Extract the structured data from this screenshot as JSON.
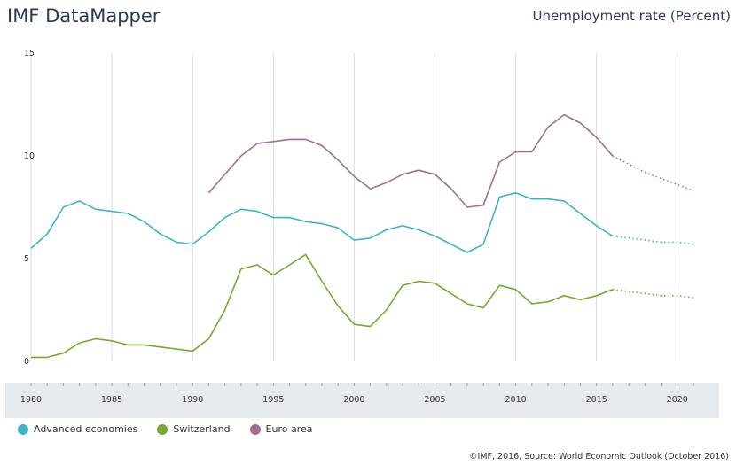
{
  "header": {
    "brand": "IMF DataMapper",
    "indicator": "Unemployment rate (Percent)"
  },
  "footer": {
    "credit": "©IMF, 2016, Source: World Economic Outlook (October 2016)"
  },
  "colors": {
    "advanced": "#3cb4c8",
    "switzerland": "#72aa32",
    "euro": "#a0708c",
    "grid": "#dddddd",
    "timeline_band": "#e6e9ed"
  },
  "chart_data": {
    "type": "line",
    "title": "Unemployment rate (Percent)",
    "xlim": [
      1980,
      2021
    ],
    "ylim": [
      0,
      15
    ],
    "y_ticks": [
      0,
      5,
      10,
      15
    ],
    "x_ticks": [
      1980,
      1985,
      1990,
      1995,
      2000,
      2005,
      2010,
      2015,
      2020
    ],
    "grid": "vertical",
    "legend_position": "bottom-left",
    "forecast_start": 2016,
    "series": [
      {
        "name": "Advanced economies",
        "color_key": "advanced",
        "x": [
          1980,
          1981,
          1982,
          1983,
          1984,
          1985,
          1986,
          1987,
          1988,
          1989,
          1990,
          1991,
          1992,
          1993,
          1994,
          1995,
          1996,
          1997,
          1998,
          1999,
          2000,
          2001,
          2002,
          2003,
          2004,
          2005,
          2006,
          2007,
          2008,
          2009,
          2010,
          2011,
          2012,
          2013,
          2014,
          2015,
          2016,
          2017,
          2018,
          2019,
          2020,
          2021
        ],
        "values": [
          5.5,
          6.2,
          7.5,
          7.8,
          7.4,
          7.3,
          7.2,
          6.8,
          6.2,
          5.8,
          5.7,
          6.3,
          7.0,
          7.4,
          7.3,
          7.0,
          7.0,
          6.8,
          6.7,
          6.5,
          5.9,
          6.0,
          6.4,
          6.6,
          6.4,
          6.1,
          5.7,
          5.3,
          5.7,
          8.0,
          8.2,
          7.9,
          7.9,
          7.8,
          7.2,
          6.6,
          6.1,
          6.0,
          5.9,
          5.8,
          5.8,
          5.7
        ]
      },
      {
        "name": "Switzerland",
        "color_key": "switzerland",
        "x": [
          1980,
          1981,
          1982,
          1983,
          1984,
          1985,
          1986,
          1987,
          1988,
          1989,
          1990,
          1991,
          1992,
          1993,
          1994,
          1995,
          1996,
          1997,
          1998,
          1999,
          2000,
          2001,
          2002,
          2003,
          2004,
          2005,
          2006,
          2007,
          2008,
          2009,
          2010,
          2011,
          2012,
          2013,
          2014,
          2015,
          2016,
          2017,
          2018,
          2019,
          2020,
          2021
        ],
        "values": [
          0.2,
          0.2,
          0.4,
          0.9,
          1.1,
          1.0,
          0.8,
          0.8,
          0.7,
          0.6,
          0.5,
          1.1,
          2.5,
          4.5,
          4.7,
          4.2,
          4.7,
          5.2,
          3.9,
          2.7,
          1.8,
          1.7,
          2.5,
          3.7,
          3.9,
          3.8,
          3.3,
          2.8,
          2.6,
          3.7,
          3.5,
          2.8,
          2.9,
          3.2,
          3.0,
          3.2,
          3.5,
          3.4,
          3.3,
          3.2,
          3.2,
          3.1
        ]
      },
      {
        "name": "Euro area",
        "color_key": "euro",
        "x": [
          1991,
          1992,
          1993,
          1994,
          1995,
          1996,
          1997,
          1998,
          1999,
          2000,
          2001,
          2002,
          2003,
          2004,
          2005,
          2006,
          2007,
          2008,
          2009,
          2010,
          2011,
          2012,
          2013,
          2014,
          2015,
          2016,
          2017,
          2018,
          2019,
          2020,
          2021
        ],
        "values": [
          8.2,
          9.1,
          10.0,
          10.6,
          10.7,
          10.8,
          10.8,
          10.5,
          9.8,
          9.0,
          8.4,
          8.7,
          9.1,
          9.3,
          9.1,
          8.4,
          7.5,
          7.6,
          9.7,
          10.2,
          10.2,
          11.4,
          12.0,
          11.6,
          10.9,
          10.0,
          9.6,
          9.2,
          8.9,
          8.6,
          8.3
        ]
      }
    ]
  }
}
